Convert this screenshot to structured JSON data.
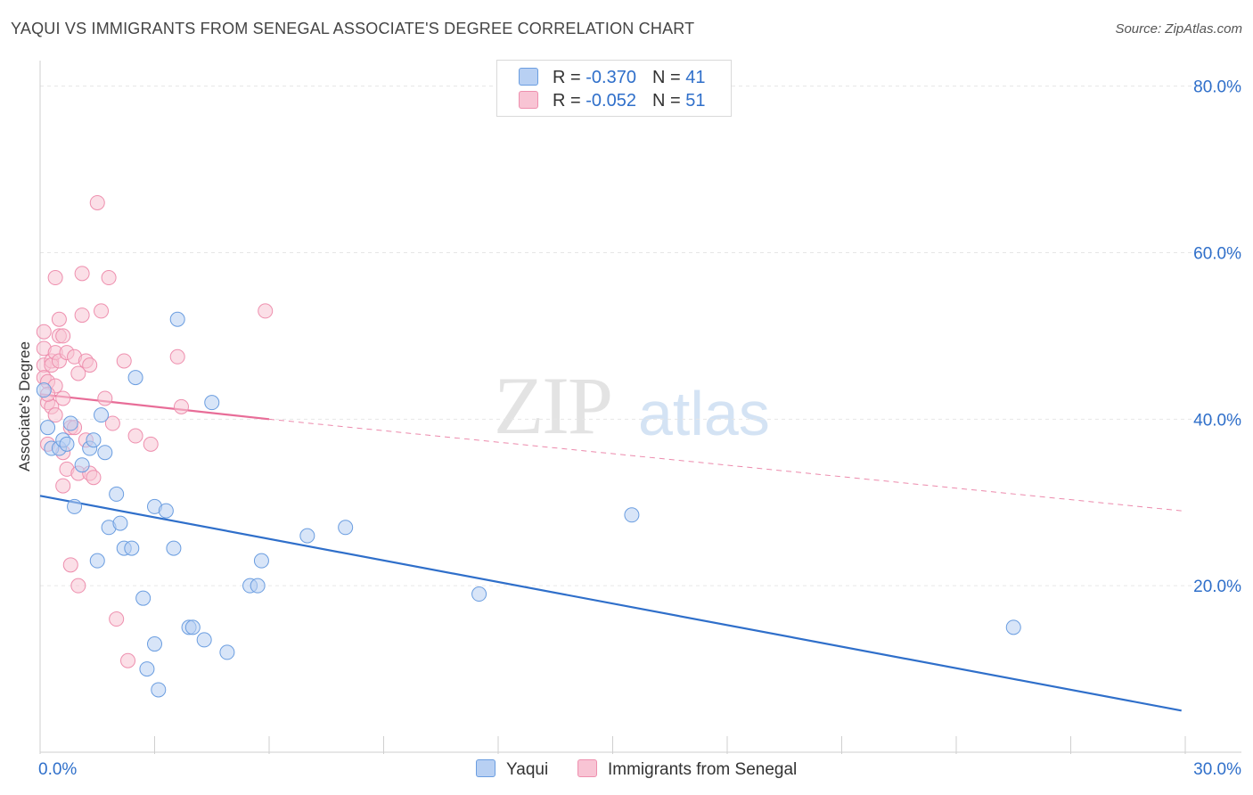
{
  "header": {
    "title": "YAQUI VS IMMIGRANTS FROM SENEGAL ASSOCIATE'S DEGREE CORRELATION CHART",
    "source": "Source: ZipAtlas.com"
  },
  "watermark": {
    "zip": "ZIP",
    "atlas": "atlas"
  },
  "colors": {
    "yaqui_fill": "#b8d0f3",
    "yaqui_stroke": "#6a9de0",
    "yaqui_line": "#2f6fca",
    "senegal_fill": "#f8c4d4",
    "senegal_stroke": "#ee8fae",
    "senegal_line": "#e86d98",
    "grid": "#e6e6e6",
    "tick_label": "#2f6fca"
  },
  "legend": {
    "rows": [
      {
        "r_label": "R =",
        "r_value": "-0.370",
        "n_label": "N =",
        "n_value": "41"
      },
      {
        "r_label": "R =",
        "r_value": "-0.052",
        "n_label": "N =",
        "n_value": "51"
      }
    ],
    "series": [
      "Yaqui",
      "Immigrants from Senegal"
    ]
  },
  "chart_data": {
    "type": "scatter",
    "title": "YAQUI VS IMMIGRANTS FROM SENEGAL ASSOCIATE'S DEGREE CORRELATION CHART",
    "xlabel": "",
    "ylabel": "Associate's Degree",
    "xlim": [
      0,
      30
    ],
    "ylim": [
      0,
      82
    ],
    "x_tick_labels": [
      "0.0%",
      "30.0%"
    ],
    "y_ticks": [
      20,
      40,
      60,
      80
    ],
    "y_tick_labels": [
      "20.0%",
      "40.0%",
      "60.0%",
      "80.0%"
    ],
    "grid": true,
    "legend_position": "top-center",
    "series": [
      {
        "name": "Yaqui",
        "points": [
          [
            0.1,
            43.5
          ],
          [
            0.2,
            39.0
          ],
          [
            0.3,
            36.5
          ],
          [
            0.5,
            36.5
          ],
          [
            0.6,
            37.5
          ],
          [
            0.7,
            37.0
          ],
          [
            0.8,
            39.5
          ],
          [
            0.9,
            29.5
          ],
          [
            1.1,
            34.5
          ],
          [
            1.3,
            36.5
          ],
          [
            1.4,
            37.5
          ],
          [
            1.5,
            23.0
          ],
          [
            1.6,
            40.5
          ],
          [
            1.7,
            36.0
          ],
          [
            1.8,
            27.0
          ],
          [
            2.0,
            31.0
          ],
          [
            2.1,
            27.5
          ],
          [
            2.2,
            24.5
          ],
          [
            2.4,
            24.5
          ],
          [
            2.5,
            45.0
          ],
          [
            2.7,
            18.5
          ],
          [
            2.8,
            10.0
          ],
          [
            3.0,
            13.0
          ],
          [
            3.0,
            29.5
          ],
          [
            3.1,
            7.5
          ],
          [
            3.3,
            29.0
          ],
          [
            3.5,
            24.5
          ],
          [
            3.6,
            52.0
          ],
          [
            3.9,
            15.0
          ],
          [
            4.0,
            15.0
          ],
          [
            4.3,
            13.5
          ],
          [
            4.5,
            42.0
          ],
          [
            4.9,
            12.0
          ],
          [
            5.5,
            20.0
          ],
          [
            5.7,
            20.0
          ],
          [
            5.8,
            23.0
          ],
          [
            7.0,
            26.0
          ],
          [
            8.0,
            27.0
          ],
          [
            11.5,
            19.0
          ],
          [
            15.5,
            28.5
          ],
          [
            25.5,
            15.0
          ]
        ],
        "trend": {
          "x": [
            0,
            29.9
          ],
          "y": [
            30.8,
            5.0
          ]
        }
      },
      {
        "name": "Immigrants from Senegal",
        "points": [
          [
            0.1,
            50.5
          ],
          [
            0.1,
            48.5
          ],
          [
            0.1,
            46.5
          ],
          [
            0.1,
            45.0
          ],
          [
            0.2,
            44.5
          ],
          [
            0.2,
            42.0
          ],
          [
            0.2,
            37.0
          ],
          [
            0.3,
            47.0
          ],
          [
            0.3,
            46.5
          ],
          [
            0.3,
            41.5
          ],
          [
            0.4,
            57.0
          ],
          [
            0.4,
            48.0
          ],
          [
            0.4,
            44.0
          ],
          [
            0.5,
            52.0
          ],
          [
            0.5,
            50.0
          ],
          [
            0.5,
            47.0
          ],
          [
            0.6,
            42.5
          ],
          [
            0.6,
            36.0
          ],
          [
            0.6,
            32.0
          ],
          [
            0.7,
            48.0
          ],
          [
            0.7,
            34.0
          ],
          [
            0.8,
            39.0
          ],
          [
            0.8,
            22.5
          ],
          [
            0.9,
            47.5
          ],
          [
            1.0,
            33.5
          ],
          [
            1.0,
            20.0
          ],
          [
            1.0,
            45.5
          ],
          [
            1.1,
            57.5
          ],
          [
            1.1,
            52.5
          ],
          [
            1.2,
            47.0
          ],
          [
            1.2,
            37.5
          ],
          [
            1.3,
            46.5
          ],
          [
            1.3,
            33.5
          ],
          [
            1.5,
            66.0
          ],
          [
            1.6,
            53.0
          ],
          [
            1.7,
            42.5
          ],
          [
            1.8,
            57.0
          ],
          [
            1.9,
            39.5
          ],
          [
            2.0,
            16.0
          ],
          [
            2.3,
            11.0
          ],
          [
            2.5,
            38.0
          ],
          [
            2.9,
            37.0
          ],
          [
            3.6,
            47.5
          ],
          [
            3.7,
            41.5
          ],
          [
            5.9,
            53.0
          ],
          [
            0.2,
            43.0
          ],
          [
            0.6,
            50.0
          ],
          [
            0.9,
            39.0
          ],
          [
            1.4,
            33.0
          ],
          [
            0.4,
            40.5
          ],
          [
            2.2,
            47.0
          ]
        ],
        "trend": {
          "x": [
            0,
            6.0
          ],
          "y": [
            43.0,
            40.0
          ]
        },
        "trend_extension": {
          "x": [
            6.0,
            29.9
          ],
          "y": [
            40.0,
            29.0
          ]
        }
      }
    ]
  }
}
